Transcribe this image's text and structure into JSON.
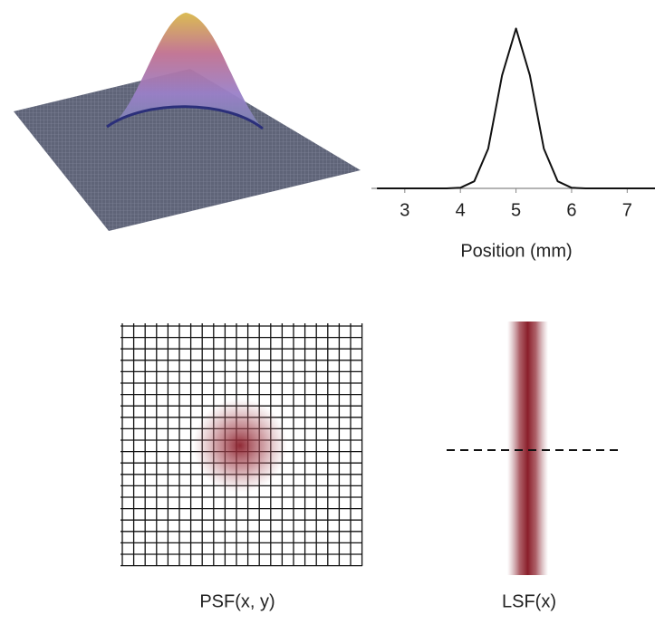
{
  "chart_data": {
    "type": "line",
    "xlabel": "Position (mm)",
    "x": [
      2.5,
      2.75,
      3,
      3.25,
      3.5,
      3.75,
      4,
      4.25,
      4.5,
      4.75,
      5,
      5.25,
      5.5,
      5.75,
      6,
      6.25,
      6.5,
      6.75,
      7,
      7.25,
      7.5
    ],
    "values": [
      0,
      0,
      0,
      0,
      0,
      0,
      0.004,
      0.044,
      0.249,
      0.707,
      1,
      0.707,
      0.249,
      0.044,
      0.004,
      0,
      0,
      0,
      0,
      0,
      0
    ],
    "color": "#111111",
    "xlim": [
      2.4,
      7.5
    ],
    "xticks": [
      3,
      4,
      5,
      6,
      7
    ],
    "ylim": [
      0,
      1.02
    ]
  },
  "panels": {
    "psf_label": "PSF(x, y)",
    "lsf_label": "LSF(x)"
  }
}
